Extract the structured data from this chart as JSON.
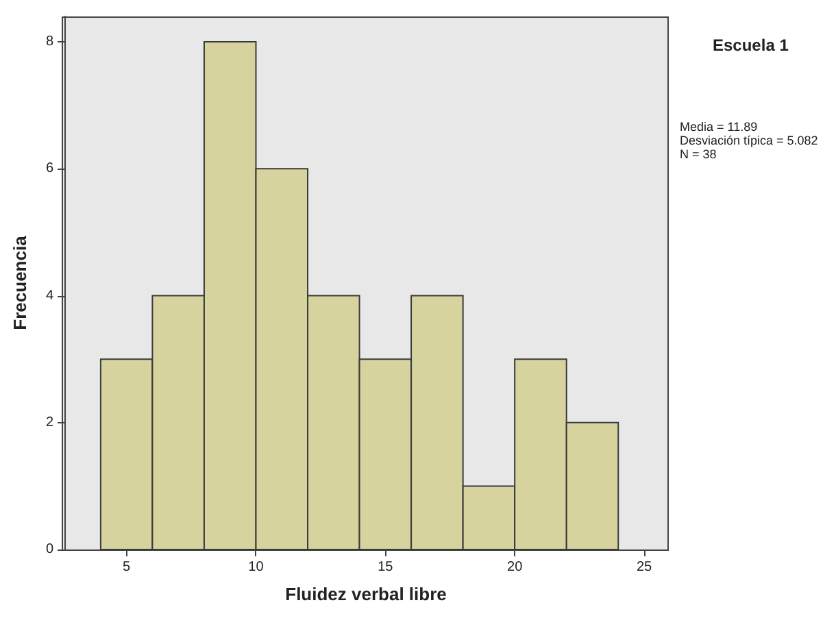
{
  "chart_data": {
    "type": "histogram",
    "title": "Escuela 1",
    "xlabel": "Fluidez verbal libre",
    "ylabel": "Frecuencia",
    "bins": [
      4,
      6,
      8,
      10,
      12,
      14,
      16,
      18,
      20,
      22,
      24
    ],
    "values": [
      3,
      4,
      8,
      6,
      4,
      3,
      4,
      1,
      3,
      2
    ],
    "color": "#d6d39e",
    "xlim": [
      2.6,
      25.9
    ],
    "xticks": [
      5,
      10,
      15,
      20,
      25
    ],
    "ylim": [
      0,
      8.4
    ],
    "yticks": [
      0,
      2,
      4,
      6,
      8
    ],
    "grid": false,
    "annotations": [
      "Media = 11.89",
      "Desviación típica = 5.082",
      "N = 38"
    ]
  }
}
